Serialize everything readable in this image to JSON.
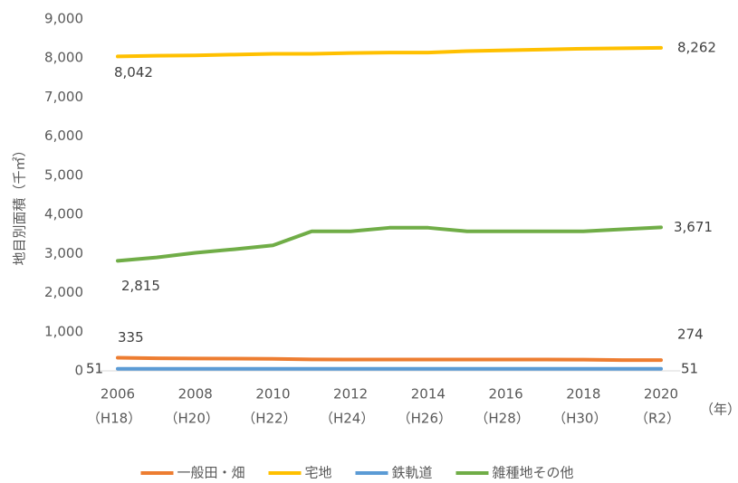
{
  "chart_data": {
    "type": "line",
    "y_label": "地目別面積（千㎡）",
    "x_unit": "（年）",
    "categories": [
      "2006",
      null,
      "2008",
      null,
      "2010",
      null,
      "2012",
      null,
      "2014",
      null,
      "2016",
      null,
      "2018",
      null,
      "2020"
    ],
    "category_sublabels": [
      "（H18）",
      null,
      "（H20）",
      null,
      "（H22）",
      null,
      "（H24）",
      null,
      "（H26）",
      null,
      "（H28）",
      null,
      "（H30）",
      null,
      "（R2）"
    ],
    "ylim": [
      0,
      9000
    ],
    "yticks": [
      0,
      {
        "value": 1000,
        "label": "1,000"
      },
      {
        "value": 2000,
        "label": "2,000"
      },
      {
        "value": 3000,
        "label": "3,000"
      },
      {
        "value": 4000,
        "label": "4,000"
      },
      {
        "value": 5000,
        "label": "5,000"
      },
      {
        "value": 6000,
        "label": "6,000"
      },
      {
        "value": 7000,
        "label": "7,000"
      },
      {
        "value": 8000,
        "label": "8,000"
      },
      {
        "value": 9000,
        "label": "9,000"
      }
    ],
    "grid": false,
    "legend": "bottom",
    "series": [
      {
        "name": "一般田・畑",
        "color": "#ed7d31",
        "values": [
          335,
          320,
          315,
          312,
          308,
          292,
          290,
          290,
          290,
          290,
          290,
          290,
          285,
          276,
          274
        ],
        "value_labels": [
          "335",
          null,
          null,
          null,
          null,
          null,
          null,
          null,
          null,
          null,
          null,
          null,
          null,
          null,
          "274"
        ]
      },
      {
        "name": "宅地",
        "color": "#ffc000",
        "values": [
          8042,
          8060,
          8070,
          8090,
          8110,
          8110,
          8130,
          8140,
          8140,
          8180,
          8200,
          8220,
          8240,
          8250,
          8262
        ],
        "value_labels": [
          "8,042",
          null,
          null,
          null,
          null,
          null,
          null,
          null,
          null,
          null,
          null,
          null,
          null,
          null,
          "8,262"
        ]
      },
      {
        "name": "鉄軌道",
        "color": "#5b9bd5",
        "values": [
          51,
          51,
          51,
          51,
          51,
          51,
          51,
          51,
          51,
          51,
          51,
          51,
          51,
          51,
          51
        ],
        "value_labels": [
          "51",
          null,
          null,
          null,
          null,
          null,
          null,
          null,
          null,
          null,
          null,
          null,
          null,
          null,
          "51"
        ]
      },
      {
        "name": "雑種地その他",
        "color": "#70ad47",
        "values": [
          2815,
          2900,
          3020,
          3110,
          3210,
          3570,
          3570,
          3660,
          3660,
          3570,
          3570,
          3570,
          3570,
          3620,
          3671
        ],
        "value_labels": [
          "2,815",
          null,
          null,
          null,
          null,
          null,
          null,
          null,
          null,
          null,
          null,
          null,
          null,
          null,
          "3,671"
        ]
      }
    ]
  }
}
